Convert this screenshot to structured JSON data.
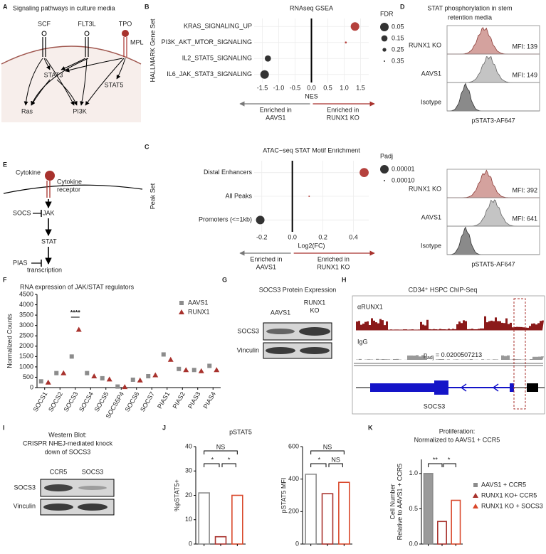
{
  "panel_labels": [
    "A",
    "B",
    "C",
    "D",
    "E",
    "F",
    "G",
    "H",
    "I",
    "J",
    "K"
  ],
  "figure_a": {
    "title": "Signaling pathways in culture media",
    "ligands": [
      "SCF",
      "FLT3L",
      "TPO"
    ],
    "receptor": "MPL",
    "nodes": [
      "STAT3",
      "STAT5",
      "Ras",
      "PI3K"
    ]
  },
  "figure_d": {
    "title": [
      "STAT phosphorylation in stem",
      "retention media"
    ],
    "rows": [
      "RUNX1 KO",
      "AAVS1",
      "Isotype"
    ],
    "panels": [
      {
        "mfi": [
          "MFI: 139",
          "MFI: 149"
        ],
        "xlabel": "pSTAT3-AF647"
      },
      {
        "mfi": [
          "MFI: 392",
          "MFI: 641"
        ],
        "xlabel": "pSTAT5-AF647"
      }
    ]
  },
  "figure_e": {
    "ligand": "Cytokine",
    "receptor": [
      "Cytokine",
      "receptor"
    ],
    "nodes": [
      "JAK",
      "STAT",
      "transcription"
    ],
    "inhibitors": [
      "SOCS",
      "PIAS"
    ]
  },
  "figure_g": {
    "title": "SOCS3 Protein Expression",
    "lanes": [
      [
        "AAVS1"
      ],
      [
        "RUNX1",
        "KO"
      ]
    ],
    "rows": [
      "SOCS3",
      "Vinculin"
    ]
  },
  "figure_h": {
    "title": "CD34⁺ HSPC ChIP-Seq",
    "tracks": [
      "αRUNX1",
      "IgG"
    ],
    "stat": [
      "p",
      "adj",
      " = 0.0200507213"
    ],
    "gene": "SOCS3"
  },
  "figure_i": {
    "title": [
      "Western Blot:",
      "CRISPR NHEJ-mediated knock",
      "down of SOCS3"
    ],
    "lanes": [
      "CCR5",
      "SOCS3"
    ],
    "rows": [
      "SOCS3",
      "Vinculin"
    ]
  },
  "chart_data": [
    {
      "type": "dot",
      "title": "RNAseq GSEA",
      "ylabel": "HALLMARK Gene Set",
      "xlabel": "NES",
      "categories": [
        "KRAS_SIGNALING_UP",
        "PI3K_AKT_MTOR_SIGNALING",
        "IL2_STAT5_SIGNALING",
        "IL6_JAK_STAT3_SIGNALING"
      ],
      "values": [
        1.33,
        1.05,
        -1.33,
        -1.43
      ],
      "size_values": [
        0.05,
        0.33,
        0.15,
        0.05
      ],
      "colors": [
        "#b5413d",
        "#b5413d",
        "#333333",
        "#333333"
      ],
      "size_legend": {
        "title": "FDR",
        "values": [
          0.05,
          0.15,
          0.25,
          0.35
        ]
      },
      "xlim": [
        -1.75,
        1.75
      ],
      "xticks": [
        -1.5,
        {
          "value": -1,
          "label": "-1.0"
        },
        -0.5,
        {
          "value": 0,
          "label": "0.0"
        },
        0.5,
        {
          "value": 1,
          "label": "1.0"
        },
        1.5
      ],
      "annotations": {
        "left": [
          "Enriched in",
          "AAVS1"
        ],
        "right": [
          "Enriched in",
          "RUNX1 KO"
        ]
      }
    },
    {
      "type": "dot",
      "title": "ATAC−seq STAT Motif Enrichment",
      "ylabel": "Peak Set",
      "xlabel": "Log2(FC)",
      "categories": [
        "Distal Enhancers",
        "All Peaks",
        "Promoters (<=1kb)"
      ],
      "values": [
        0.47,
        0.11,
        -0.21
      ],
      "size_values": [
        3e-06,
        0.0002,
        1e-05
      ],
      "colors": [
        "#b5413d",
        "#b5413d",
        "#333333"
      ],
      "size_legend": {
        "title": "Padj",
        "values": [
          1e-05,
          {
            "value": 0.0001,
            "label": "0.00010"
          }
        ]
      },
      "xlim": [
        -0.25,
        0.5
      ],
      "xticks": [
        -0.2,
        {
          "value": 0,
          "label": "0.0"
        },
        0.2,
        0.4
      ],
      "annotations": {
        "left": [
          "Enriched in",
          "AAVS1"
        ],
        "right": [
          "Enriched in",
          "RUNX1 KO"
        ]
      }
    },
    {
      "type": "points",
      "title": "RNA expression of JAK/STAT regulators",
      "ylabel": "Normalized Counts",
      "categories": [
        "SOCS1",
        "SOCS2",
        "SOCS3",
        "SOCS4",
        "SOCS5",
        "SOCS5P4",
        "SOCS6",
        "SOCS7",
        "PIAS1",
        "PIAS2",
        "PIAS3",
        "PIAS4"
      ],
      "series": [
        {
          "name": "AAVS1",
          "color": "#8c8c8c",
          "marker": "square",
          "values": [
            300,
            700,
            1500,
            700,
            450,
            50,
            380,
            550,
            1600,
            900,
            850,
            1050
          ]
        },
        {
          "name": "RUNX1",
          "color": "#a8322d",
          "marker": "triangle",
          "values": [
            250,
            700,
            2800,
            550,
            400,
            30,
            350,
            600,
            1350,
            850,
            800,
            850
          ]
        }
      ],
      "ylim": [
        0,
        4500
      ],
      "yticks": [
        0,
        500,
        1000,
        1500,
        2000,
        2500,
        3000,
        3500,
        4000,
        4500
      ],
      "annotation": "****"
    },
    {
      "type": "bar",
      "title": "pSTAT5",
      "ylabel": "%pSTAT5+",
      "values": [
        21,
        3,
        20
      ],
      "colors": [
        "#8c8c8c",
        "#a8322d",
        "#d9482b"
      ],
      "ylim": [
        0,
        40
      ],
      "yticks": [
        0,
        10,
        20,
        30,
        40
      ],
      "significance": [
        "NS",
        "*",
        "*"
      ]
    },
    {
      "type": "bar",
      "ylabel": "pSTAT5 MFI",
      "values": [
        430,
        310,
        380
      ],
      "colors": [
        "#8c8c8c",
        "#a8322d",
        "#d9482b"
      ],
      "ylim": [
        0,
        600
      ],
      "yticks": [
        0,
        200,
        400,
        600
      ],
      "significance": [
        "NS",
        "*",
        "NS"
      ]
    },
    {
      "type": "bar",
      "title": [
        "Proliferation:",
        "Normalized to AAVS1 + CCR5"
      ],
      "ylabel": [
        "Cell Number",
        "Relative to AAVS1 + CCR5"
      ],
      "categories": [
        "AAVS1 + CCR5",
        "RUNX1 KO+ CCR5",
        "RUNX1 KO + SOCS3"
      ],
      "values": [
        1.0,
        0.32,
        0.62
      ],
      "colors": [
        "#8c8c8c",
        "#a8322d",
        "#d9482b"
      ],
      "ylim": [
        0,
        1.2
      ],
      "yticks": [
        {
          "value": 0,
          "label": "0.0"
        },
        0.5,
        {
          "value": 1,
          "label": "1.0"
        }
      ],
      "significance": [
        "**",
        "*"
      ]
    }
  ]
}
